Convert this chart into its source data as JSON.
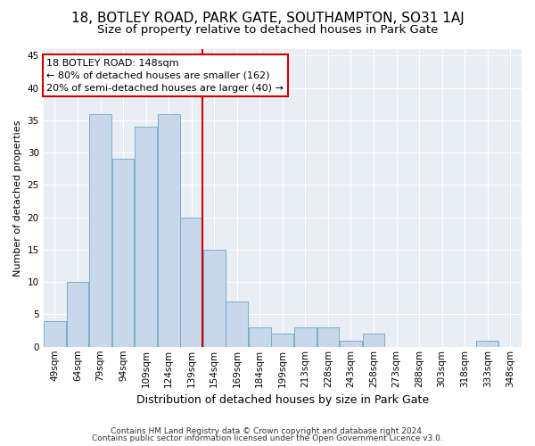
{
  "title": "18, BOTLEY ROAD, PARK GATE, SOUTHAMPTON, SO31 1AJ",
  "subtitle": "Size of property relative to detached houses in Park Gate",
  "xlabel": "Distribution of detached houses by size in Park Gate",
  "ylabel": "Number of detached properties",
  "categories": [
    "49sqm",
    "64sqm",
    "79sqm",
    "94sqm",
    "109sqm",
    "124sqm",
    "139sqm",
    "154sqm",
    "169sqm",
    "184sqm",
    "199sqm",
    "213sqm",
    "228sqm",
    "243sqm",
    "258sqm",
    "273sqm",
    "288sqm",
    "303sqm",
    "318sqm",
    "333sqm",
    "348sqm"
  ],
  "values": [
    4,
    10,
    36,
    29,
    34,
    36,
    20,
    15,
    7,
    3,
    2,
    3,
    3,
    1,
    2,
    0,
    0,
    0,
    0,
    1,
    0
  ],
  "bar_color": "#c8d8ea",
  "bar_edge_color": "#7aaec8",
  "vline_x_index": 6.5,
  "vline_color": "#cc0000",
  "annotation_title": "18 BOTLEY ROAD: 148sqm",
  "annotation_line1": "← 80% of detached houses are smaller (162)",
  "annotation_line2": "20% of semi-detached houses are larger (40) →",
  "annotation_box_edgecolor": "#cc0000",
  "annotation_box_facecolor": "#ffffff",
  "ylim": [
    0,
    46
  ],
  "yticks": [
    0,
    5,
    10,
    15,
    20,
    25,
    30,
    35,
    40,
    45
  ],
  "footer1": "Contains HM Land Registry data © Crown copyright and database right 2024.",
  "footer2": "Contains public sector information licensed under the Open Government Licence v3.0.",
  "bg_color": "#ffffff",
  "plot_bg_color": "#e8eef4",
  "grid_color": "#ffffff",
  "title_fontsize": 11,
  "subtitle_fontsize": 9.5,
  "ylabel_fontsize": 8,
  "xlabel_fontsize": 9,
  "tick_fontsize": 7.5,
  "footer_fontsize": 6.5,
  "annotation_fontsize": 8
}
